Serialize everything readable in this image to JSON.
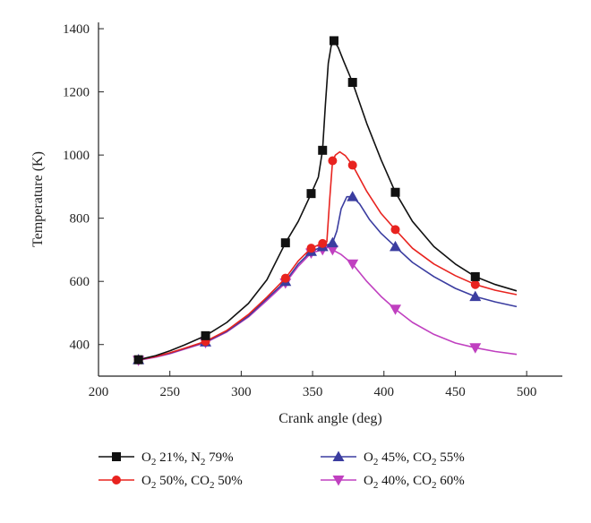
{
  "chart_data": {
    "type": "line",
    "xlabel": "Crank angle (deg)",
    "ylabel": "Temperature (K)",
    "xlim": [
      200,
      525
    ],
    "ylim": [
      300,
      1420
    ],
    "x_ticks": [
      200,
      250,
      300,
      350,
      400,
      450,
      500
    ],
    "y_ticks": [
      400,
      600,
      800,
      1000,
      1200,
      1400
    ],
    "legend_position": "bottom",
    "series": [
      {
        "name": "O2 21%, N2 79%",
        "label": {
          "a": "O",
          "a_sub": "2",
          "b": " 21%, N",
          "b_sub": "2",
          "c": " 79%"
        },
        "color": "#111111",
        "marker": "square",
        "markers": [
          [
            228,
            352
          ],
          [
            275,
            428
          ],
          [
            331,
            722
          ],
          [
            349,
            878
          ],
          [
            357,
            1015
          ],
          [
            365,
            1362
          ],
          [
            378,
            1230
          ],
          [
            408,
            882
          ],
          [
            464,
            615
          ]
        ],
        "curve": [
          [
            228,
            352
          ],
          [
            240,
            365
          ],
          [
            250,
            380
          ],
          [
            260,
            398
          ],
          [
            275,
            428
          ],
          [
            290,
            470
          ],
          [
            305,
            530
          ],
          [
            318,
            605
          ],
          [
            331,
            722
          ],
          [
            340,
            790
          ],
          [
            349,
            878
          ],
          [
            354,
            930
          ],
          [
            357,
            1015
          ],
          [
            359,
            1160
          ],
          [
            361,
            1290
          ],
          [
            363,
            1345
          ],
          [
            365,
            1362
          ],
          [
            368,
            1340
          ],
          [
            372,
            1295
          ],
          [
            378,
            1230
          ],
          [
            388,
            1100
          ],
          [
            398,
            985
          ],
          [
            408,
            882
          ],
          [
            420,
            790
          ],
          [
            435,
            710
          ],
          [
            450,
            655
          ],
          [
            464,
            615
          ],
          [
            478,
            590
          ],
          [
            493,
            570
          ]
        ]
      },
      {
        "name": "O2 50%, CO2 50%",
        "label": {
          "a": "O",
          "a_sub": "2",
          "b": " 50%, CO",
          "b_sub": "2",
          "c": " 50%"
        },
        "color": "#e8231f",
        "marker": "circle",
        "markers": [
          [
            228,
            352
          ],
          [
            275,
            410
          ],
          [
            331,
            610
          ],
          [
            349,
            705
          ],
          [
            357,
            720
          ],
          [
            364,
            982
          ],
          [
            378,
            968
          ],
          [
            408,
            764
          ],
          [
            464,
            590
          ]
        ],
        "curve": [
          [
            228,
            352
          ],
          [
            240,
            362
          ],
          [
            250,
            374
          ],
          [
            260,
            388
          ],
          [
            275,
            410
          ],
          [
            290,
            445
          ],
          [
            305,
            495
          ],
          [
            318,
            550
          ],
          [
            331,
            610
          ],
          [
            340,
            665
          ],
          [
            349,
            705
          ],
          [
            354,
            715
          ],
          [
            357,
            720
          ],
          [
            360,
            725
          ],
          [
            362,
            860
          ],
          [
            364,
            982
          ],
          [
            366,
            1000
          ],
          [
            369,
            1010
          ],
          [
            373,
            998
          ],
          [
            378,
            968
          ],
          [
            388,
            885
          ],
          [
            398,
            815
          ],
          [
            408,
            764
          ],
          [
            420,
            705
          ],
          [
            435,
            655
          ],
          [
            450,
            618
          ],
          [
            464,
            590
          ],
          [
            478,
            572
          ],
          [
            493,
            558
          ]
        ]
      },
      {
        "name": "O2 45%, CO2 55%",
        "label": {
          "a": "O",
          "a_sub": "2",
          "b": " 45%, CO",
          "b_sub": "2",
          "c": " 55%"
        },
        "color": "#3b3da0",
        "marker": "triangle-up",
        "markers": [
          [
            228,
            352
          ],
          [
            275,
            408
          ],
          [
            331,
            600
          ],
          [
            349,
            695
          ],
          [
            357,
            710
          ],
          [
            364,
            722
          ],
          [
            378,
            868
          ],
          [
            408,
            710
          ],
          [
            464,
            552
          ]
        ],
        "curve": [
          [
            228,
            352
          ],
          [
            240,
            362
          ],
          [
            250,
            373
          ],
          [
            260,
            387
          ],
          [
            275,
            408
          ],
          [
            290,
            442
          ],
          [
            305,
            490
          ],
          [
            318,
            545
          ],
          [
            331,
            600
          ],
          [
            340,
            655
          ],
          [
            349,
            695
          ],
          [
            357,
            710
          ],
          [
            364,
            722
          ],
          [
            367,
            760
          ],
          [
            370,
            830
          ],
          [
            374,
            868
          ],
          [
            378,
            868
          ],
          [
            383,
            845
          ],
          [
            390,
            795
          ],
          [
            398,
            752
          ],
          [
            408,
            710
          ],
          [
            420,
            660
          ],
          [
            435,
            615
          ],
          [
            450,
            578
          ],
          [
            464,
            552
          ],
          [
            478,
            535
          ],
          [
            493,
            520
          ]
        ]
      },
      {
        "name": "O2 40%, CO2 60%",
        "label": {
          "a": "O",
          "a_sub": "2",
          "b": " 40%, CO",
          "b_sub": "2",
          "c": " 60%"
        },
        "color": "#c040c0",
        "marker": "triangle-down",
        "markers": [
          [
            228,
            350
          ],
          [
            275,
            406
          ],
          [
            331,
            595
          ],
          [
            349,
            690
          ],
          [
            357,
            700
          ],
          [
            364,
            700
          ],
          [
            378,
            655
          ],
          [
            408,
            512
          ],
          [
            464,
            390
          ]
        ],
        "curve": [
          [
            228,
            350
          ],
          [
            240,
            360
          ],
          [
            250,
            371
          ],
          [
            260,
            385
          ],
          [
            275,
            406
          ],
          [
            290,
            440
          ],
          [
            305,
            487
          ],
          [
            318,
            540
          ],
          [
            331,
            595
          ],
          [
            340,
            648
          ],
          [
            349,
            690
          ],
          [
            357,
            700
          ],
          [
            361,
            708
          ],
          [
            364,
            700
          ],
          [
            370,
            685
          ],
          [
            378,
            655
          ],
          [
            388,
            600
          ],
          [
            398,
            552
          ],
          [
            408,
            512
          ],
          [
            420,
            470
          ],
          [
            435,
            432
          ],
          [
            450,
            405
          ],
          [
            464,
            390
          ],
          [
            478,
            378
          ],
          [
            493,
            369
          ]
        ]
      }
    ]
  }
}
